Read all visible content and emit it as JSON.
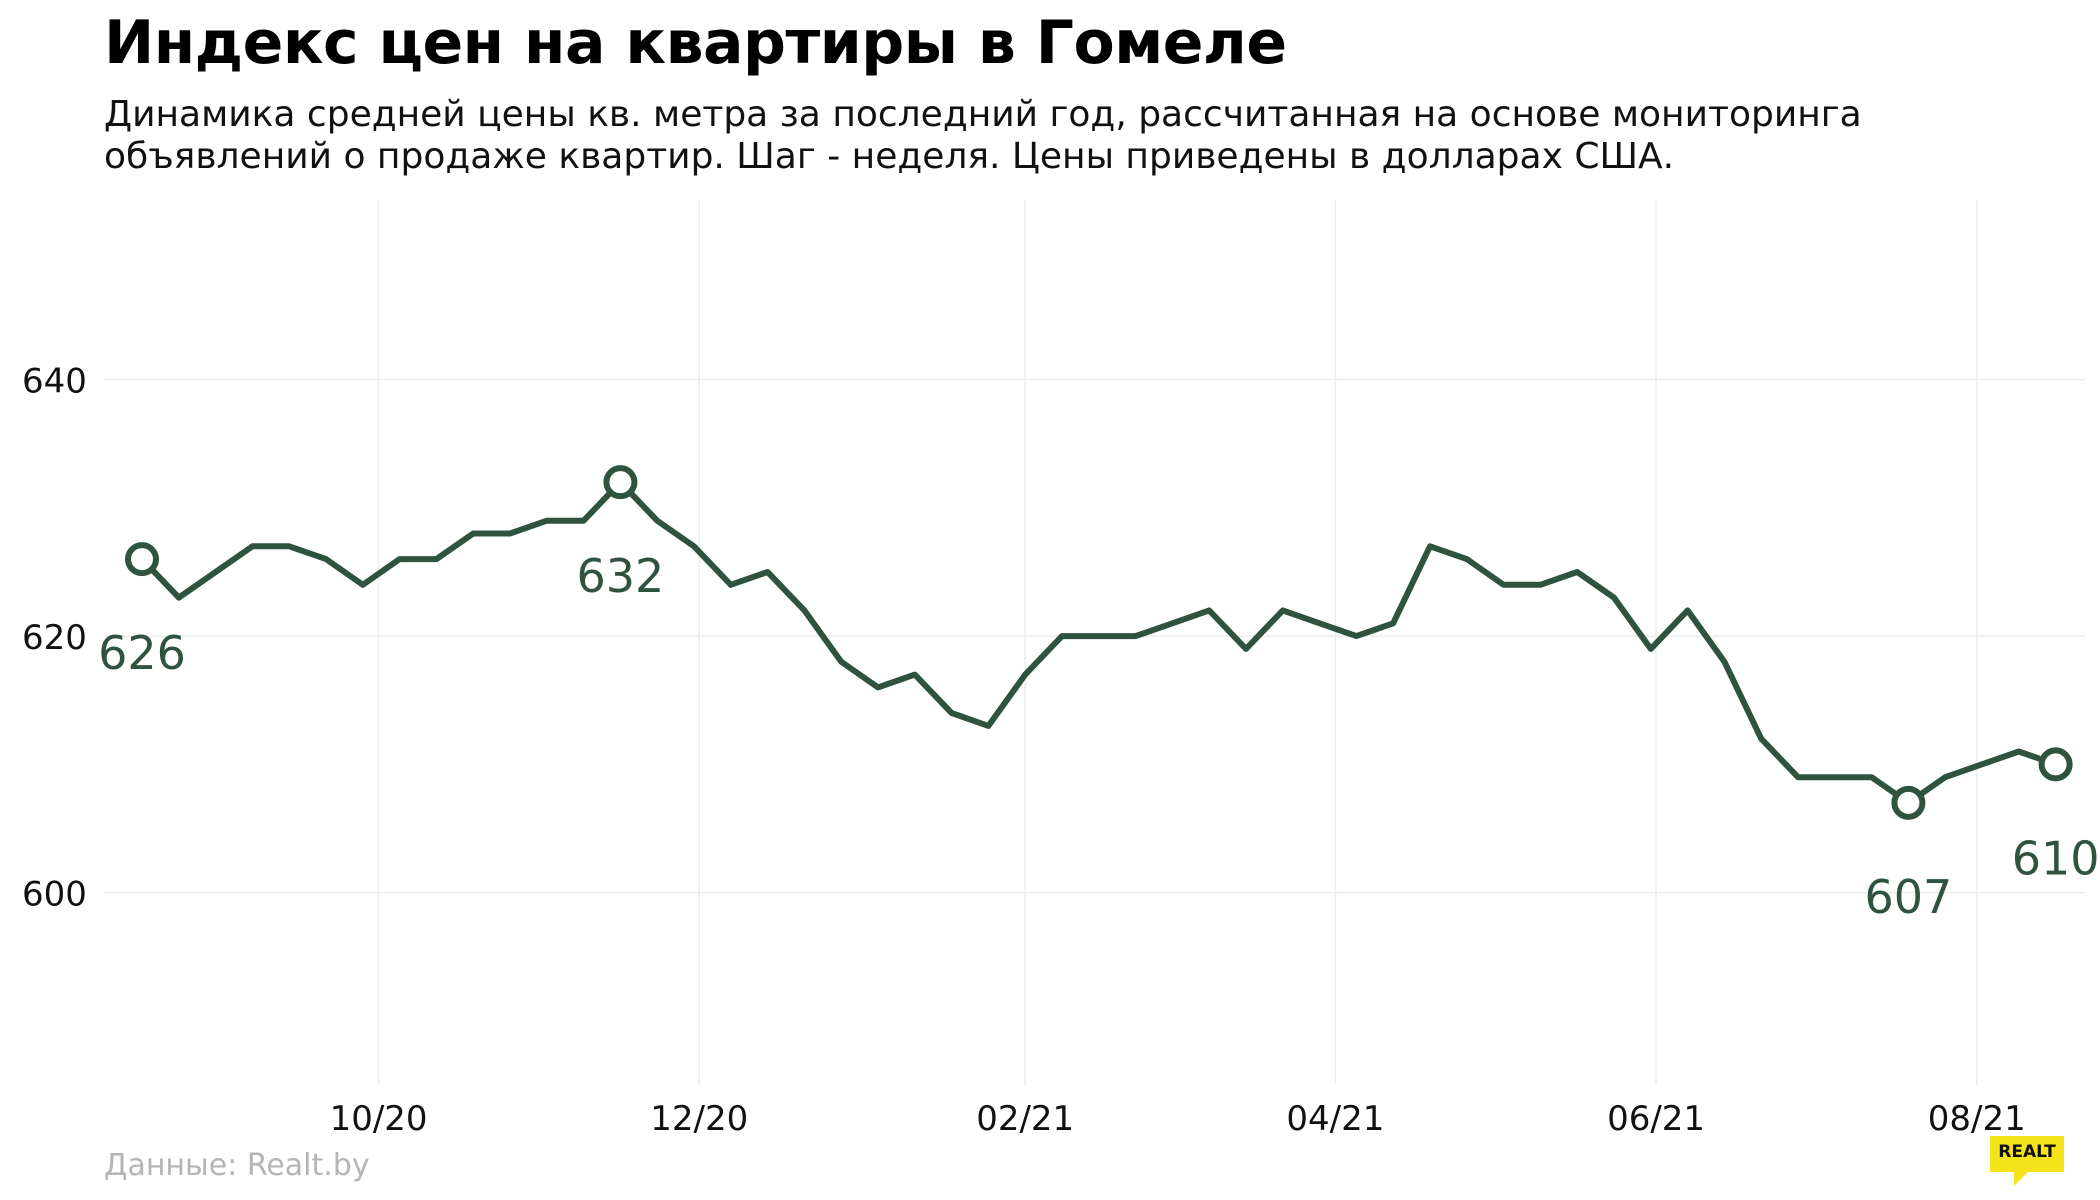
{
  "title": "Индекс цен на квартиры в Гомеле",
  "subtitle_lines": [
    "Динамика средней цены кв. метра за последний год, рассчитанная на основе мониторинга",
    "объявлений о продаже квартир. Шаг - неделя. Цены приведены в долларах США."
  ],
  "source": "Данные: Realt.by",
  "logo": {
    "text": "REALT",
    "accent": "#f5e31a"
  },
  "colors": {
    "line": "#2e5440",
    "grid": "#ececec",
    "axis_text": "#111111",
    "source_text": "#b5b5b5"
  },
  "chart_data": {
    "type": "line",
    "title": "Индекс цен на квартиры в Гомеле",
    "xlabel": "",
    "ylabel": "",
    "x_start": "2020-08-17",
    "x_step_days": 7,
    "values": [
      626,
      623,
      625,
      627,
      627,
      626,
      624,
      626,
      626,
      628,
      628,
      629,
      629,
      632,
      629,
      627,
      624,
      625,
      622,
      618,
      616,
      617,
      614,
      613,
      617,
      620,
      620,
      620,
      621,
      622,
      619,
      622,
      621,
      620,
      621,
      627,
      626,
      624,
      624,
      625,
      623,
      619,
      622,
      618,
      612,
      609,
      609,
      609,
      607,
      609,
      610,
      611,
      610
    ],
    "ylim": [
      585,
      654
    ],
    "yticks": [
      600,
      620,
      640
    ],
    "xticks": [
      {
        "label": "10/20",
        "date": "2020-10-01"
      },
      {
        "label": "12/20",
        "date": "2020-12-01"
      },
      {
        "label": "02/21",
        "date": "2021-02-01"
      },
      {
        "label": "04/21",
        "date": "2021-04-01"
      },
      {
        "label": "06/21",
        "date": "2021-06-01"
      },
      {
        "label": "08/21",
        "date": "2021-08-01"
      }
    ],
    "annotations": [
      {
        "index": 0,
        "label": "626",
        "position": "below"
      },
      {
        "index": 13,
        "label": "632",
        "position": "below"
      },
      {
        "index": 48,
        "label": "607",
        "position": "below"
      },
      {
        "index": 52,
        "label": "610",
        "position": "below"
      }
    ],
    "grid": true,
    "legend": "none"
  }
}
